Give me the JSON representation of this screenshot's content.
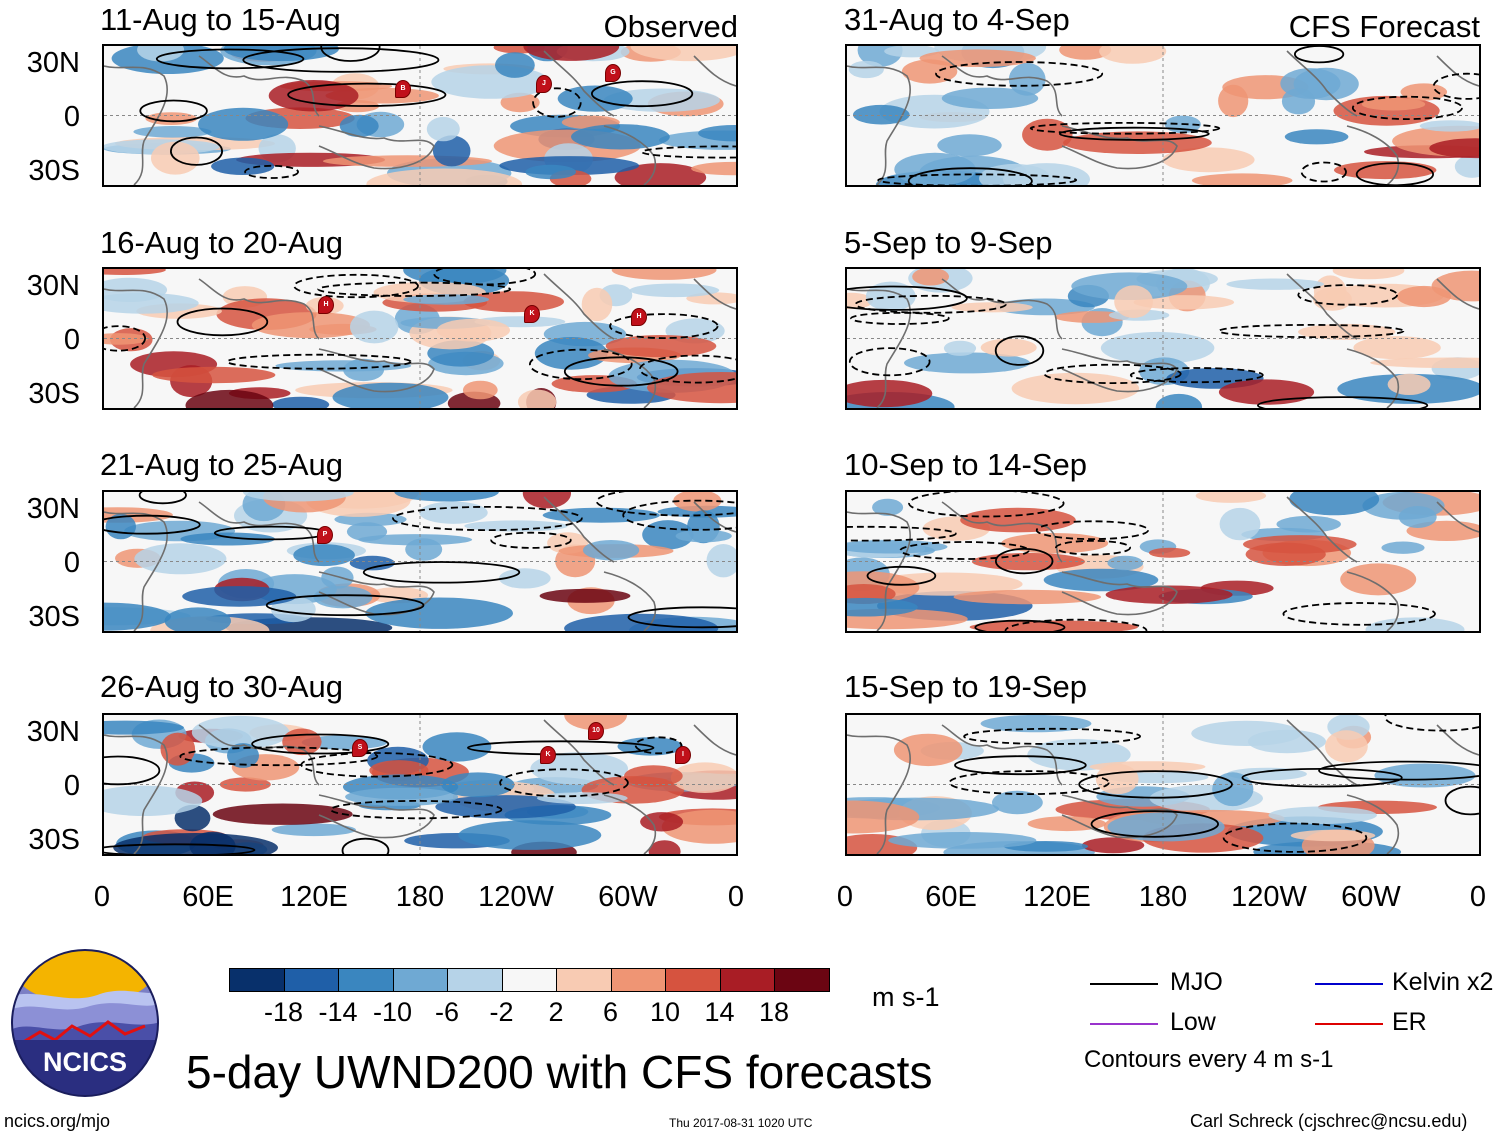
{
  "title": "5-day UWND200 with CFS forecasts",
  "observed_label": "Observed",
  "forecast_label": "CFS Forecast",
  "panels_left": [
    {
      "title": "11-Aug to 15-Aug"
    },
    {
      "title": "16-Aug to 20-Aug"
    },
    {
      "title": "21-Aug to 25-Aug"
    },
    {
      "title": "26-Aug to 30-Aug"
    }
  ],
  "panels_right": [
    {
      "title": "31-Aug to 4-Sep"
    },
    {
      "title": "5-Sep to 9-Sep"
    },
    {
      "title": "10-Sep to 14-Sep"
    },
    {
      "title": "15-Sep to 19-Sep"
    }
  ],
  "lat_labels": [
    "30N",
    "0",
    "30S"
  ],
  "lon_labels": [
    "0",
    "60E",
    "120E",
    "180",
    "120W",
    "60W",
    "0"
  ],
  "storm_markers": {
    "panel1": [
      "B",
      "J",
      "G"
    ],
    "panel2": [
      "H",
      "K",
      "H"
    ],
    "panel3": [
      "P"
    ],
    "panel4": [
      "S",
      "K",
      "10",
      "I"
    ]
  },
  "colorbar": {
    "ticks": [
      "-18",
      "-14",
      "-10",
      "-6",
      "-2",
      "2",
      "6",
      "10",
      "14",
      "18"
    ],
    "colors": [
      "#08306b",
      "#1f5fa8",
      "#3a86bf",
      "#6fa9d3",
      "#b6d3e8",
      "#f7f7f7",
      "#f8cbb3",
      "#ef9574",
      "#d6533f",
      "#a91d25",
      "#6b0512"
    ],
    "units": "m s-1"
  },
  "legend": [
    {
      "label": "MJO",
      "color": "#000000"
    },
    {
      "label": "Kelvin x2",
      "color": "#0000cc"
    },
    {
      "label": "Low",
      "color": "#9933cc"
    },
    {
      "label": "ER",
      "color": "#dd0000"
    }
  ],
  "contour_note": "Contours every 4 m s-1",
  "logo_text": "NCICS",
  "footer": {
    "left": "ncics.org/mjo",
    "center": "Thu 2017-08-31 1020 UTC",
    "right": "Carl Schreck (cjschrec@ncsu.edu)"
  }
}
